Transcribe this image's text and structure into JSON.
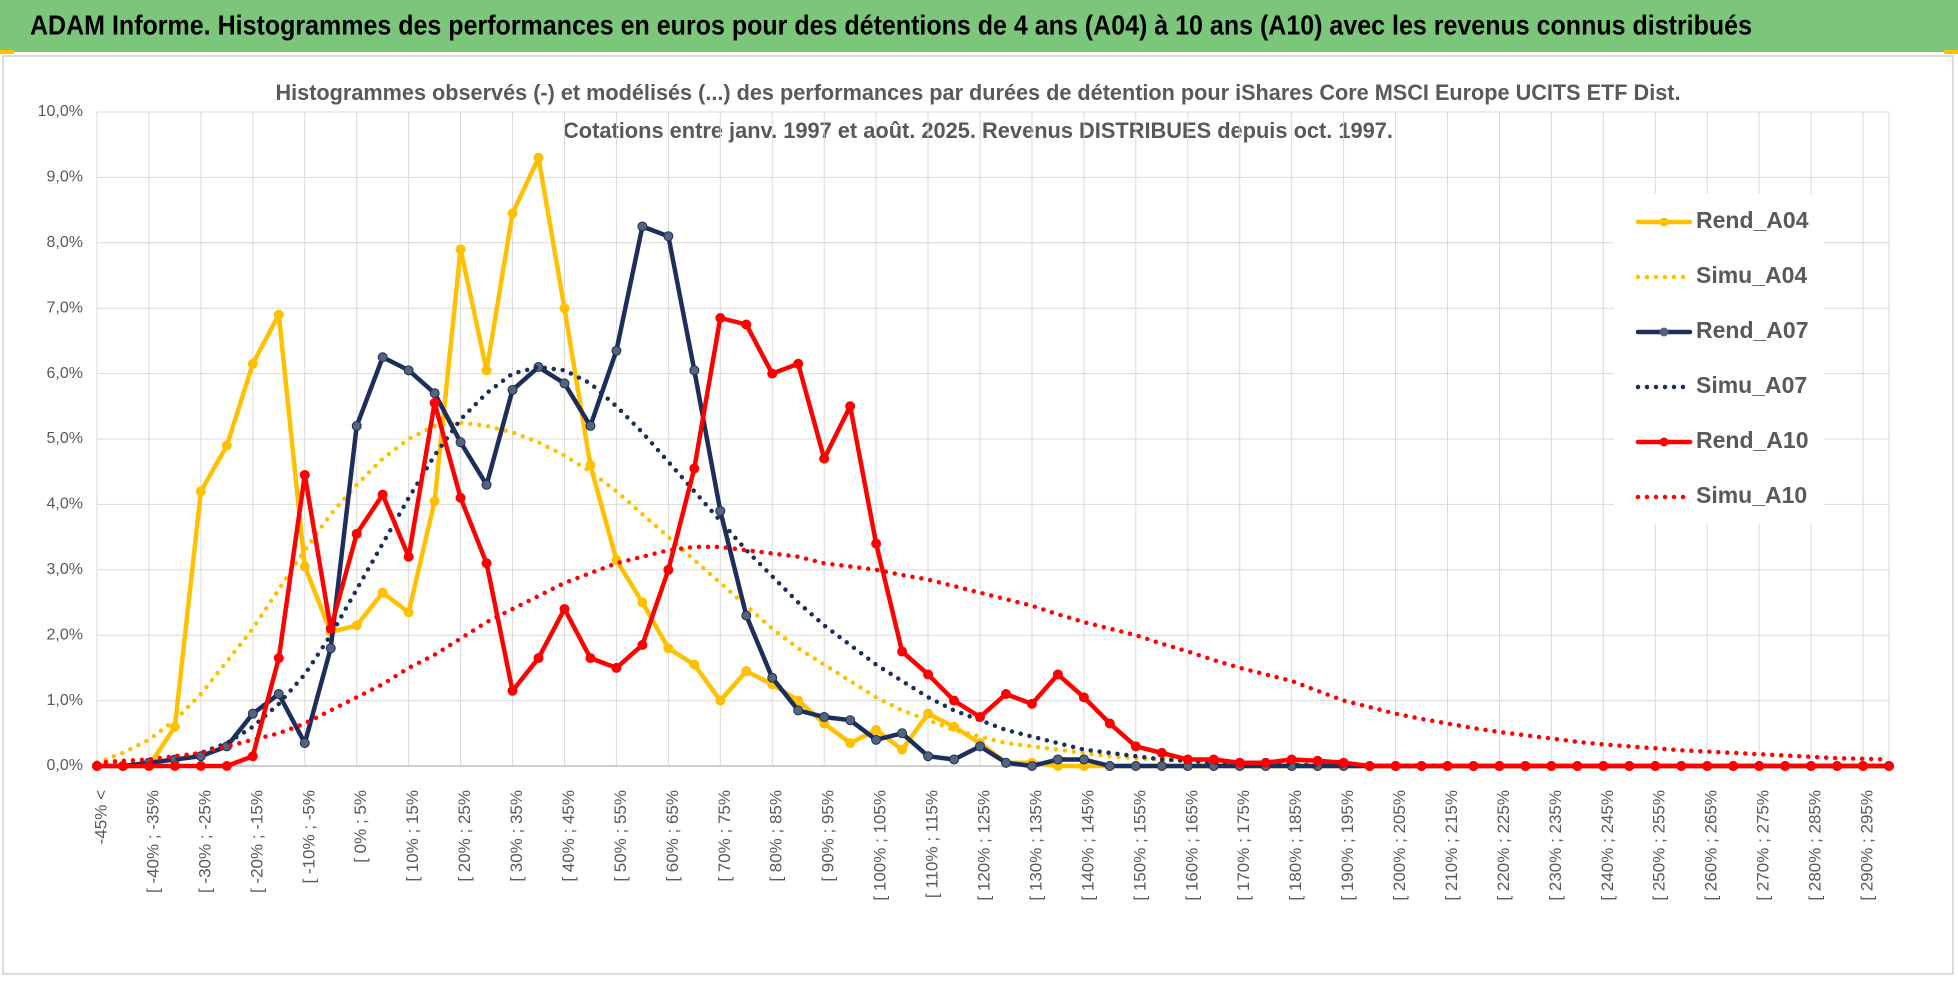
{
  "header": {
    "title": "ADAM Informe. Histogrammes des performances en euros pour des détentions de 4 ans (A04) à 10 ans (A10) avec les revenus connus distribués"
  },
  "chart_data": {
    "type": "line",
    "title": "Histogrammes observés (-) et modélisés (...) des performances par durées de détention pour iShares Core MSCI Europe UCITS ETF Dist.",
    "subtitle": "Cotations entre janv. 1997 et août. 2025. Revenus DISTRIBUES depuis oct. 1997.",
    "categories": [
      "-45% <",
      null,
      "[ -40% ; -35%",
      null,
      "[ -30% ; -25%",
      null,
      "[ -20% ; -15%",
      null,
      "[ -10% ; -5%",
      null,
      "[ 0% ; 5%",
      null,
      "[ 10% ; 15%",
      null,
      "[ 20% ; 25%",
      null,
      "[ 30% ; 35%",
      null,
      "[ 40% ; 45%",
      null,
      "[ 50% ; 55%",
      null,
      "[ 60% ; 65%",
      null,
      "[ 70% ; 75%",
      null,
      "[ 80% ; 85%",
      null,
      "[ 90% ; 95%",
      null,
      "[ 100% ; 105%",
      null,
      "[ 110% ; 115%",
      null,
      "[ 120% ; 125%",
      null,
      "[ 130% ; 135%",
      null,
      "[ 140% ; 145%",
      null,
      "[ 150% ; 155%",
      null,
      "[ 160% ; 165%",
      null,
      "[ 170% ; 175%",
      null,
      "[ 180% ; 185%",
      null,
      "[ 190% ; 195%",
      null,
      "[ 200% ; 205%",
      null,
      "[ 210% ; 215%",
      null,
      "[ 220% ; 225%",
      null,
      "[ 230% ; 235%",
      null,
      "[ 240% ; 245%",
      null,
      "[ 250% ; 255%",
      null,
      "[ 260% ; 265%",
      null,
      "[ 270% ; 275%",
      null,
      "[ 280% ; 285%",
      null,
      "[ 290% ; 295%",
      null
    ],
    "series": [
      {
        "name": "Rend_A04",
        "color": "#ffc000",
        "style": "solid",
        "markers": true,
        "values": [
          0,
          0,
          0,
          0.6,
          4.2,
          4.9,
          6.15,
          6.9,
          3.05,
          2.05,
          2.15,
          2.65,
          2.35,
          4.05,
          7.9,
          6.05,
          8.45,
          9.3,
          7.0,
          4.6,
          3.15,
          2.5,
          1.8,
          1.55,
          1.0,
          1.45,
          1.25,
          1.0,
          0.65,
          0.35,
          0.55,
          0.25,
          0.8,
          0.6,
          0.35,
          0.05,
          0.05,
          0,
          0,
          0,
          0,
          0,
          0,
          0,
          0,
          0,
          0,
          0,
          0,
          0,
          0,
          0,
          0,
          0,
          0,
          0,
          0,
          0,
          0,
          0,
          0,
          0,
          0,
          0,
          0,
          0,
          0,
          0,
          0,
          0
        ]
      },
      {
        "name": "Simu_A04",
        "color": "#ffc000",
        "style": "dotted",
        "markers": false,
        "values": [
          0.05,
          0.2,
          0.4,
          0.7,
          1.1,
          1.6,
          2.1,
          2.7,
          3.3,
          3.85,
          4.3,
          4.7,
          5.0,
          5.2,
          5.25,
          5.2,
          5.1,
          4.95,
          4.75,
          4.5,
          4.2,
          3.85,
          3.5,
          3.15,
          2.8,
          2.45,
          2.1,
          1.8,
          1.55,
          1.3,
          1.05,
          0.85,
          0.7,
          0.55,
          0.45,
          0.35,
          0.3,
          0.25,
          0.2,
          0.15,
          0.12,
          0.1,
          0.08,
          0.06,
          0.05,
          0.04,
          0.03,
          0.02,
          0.02,
          0.01,
          0.01,
          0.01,
          0.01,
          0,
          0,
          0,
          0,
          0,
          0,
          0,
          0,
          0,
          0,
          0,
          0,
          0,
          0,
          0,
          0,
          0
        ]
      },
      {
        "name": "Rend_A07",
        "color": "#1c2e5c",
        "style": "solid",
        "markers": true,
        "values": [
          0,
          0,
          0.05,
          0.1,
          0.15,
          0.3,
          0.8,
          1.1,
          0.35,
          1.8,
          5.2,
          6.25,
          6.05,
          5.7,
          4.95,
          4.3,
          5.75,
          6.1,
          5.85,
          5.2,
          6.35,
          8.25,
          8.1,
          6.05,
          3.9,
          2.3,
          1.35,
          0.85,
          0.75,
          0.7,
          0.4,
          0.5,
          0.15,
          0.1,
          0.3,
          0.05,
          0,
          0.1,
          0.1,
          0,
          0,
          0,
          0,
          0,
          0,
          0,
          0,
          0,
          0,
          0,
          0,
          0,
          0,
          0,
          0,
          0,
          0,
          0,
          0,
          0,
          0,
          0,
          0,
          0,
          0,
          0,
          0,
          0,
          0,
          0
        ]
      },
      {
        "name": "Simu_A07",
        "color": "#1c2e5c",
        "style": "dotted",
        "markers": false,
        "values": [
          0,
          0.02,
          0.05,
          0.1,
          0.2,
          0.35,
          0.6,
          0.95,
          1.4,
          2.0,
          2.7,
          3.4,
          4.1,
          4.75,
          5.3,
          5.7,
          6.0,
          6.1,
          6.05,
          5.85,
          5.5,
          5.1,
          4.65,
          4.2,
          3.75,
          3.3,
          2.9,
          2.5,
          2.15,
          1.85,
          1.55,
          1.3,
          1.05,
          0.85,
          0.7,
          0.55,
          0.45,
          0.35,
          0.25,
          0.2,
          0.15,
          0.1,
          0.08,
          0.05,
          0.04,
          0.03,
          0.02,
          0.01,
          0,
          0,
          0,
          0,
          0,
          0,
          0,
          0,
          0,
          0,
          0,
          0,
          0,
          0,
          0,
          0,
          0,
          0,
          0,
          0,
          0,
          0
        ]
      },
      {
        "name": "Rend_A10",
        "color": "#ff0000",
        "style": "solid",
        "markers": true,
        "values": [
          0,
          0,
          0,
          0,
          0,
          0,
          0.15,
          1.65,
          4.45,
          2.1,
          3.55,
          4.15,
          3.2,
          5.55,
          4.1,
          3.1,
          1.15,
          1.65,
          2.4,
          1.65,
          1.5,
          1.85,
          3.0,
          4.55,
          6.85,
          6.75,
          6.0,
          6.15,
          4.7,
          5.5,
          3.4,
          1.75,
          1.4,
          1.0,
          0.75,
          1.1,
          0.95,
          1.4,
          1.05,
          0.65,
          0.3,
          0.2,
          0.1,
          0.1,
          0.05,
          0.05,
          0.1,
          0.08,
          0.05,
          0,
          0,
          0,
          0,
          0,
          0,
          0,
          0,
          0,
          0,
          0,
          0,
          0,
          0,
          0,
          0,
          0,
          0,
          0,
          0,
          0
        ]
      },
      {
        "name": "Simu_A10",
        "color": "#ff0000",
        "style": "dotted",
        "markers": false,
        "values": [
          0.05,
          0.08,
          0.1,
          0.15,
          0.2,
          0.3,
          0.4,
          0.5,
          0.65,
          0.85,
          1.05,
          1.25,
          1.5,
          1.7,
          1.95,
          2.2,
          2.4,
          2.6,
          2.8,
          2.95,
          3.1,
          3.2,
          3.3,
          3.35,
          3.35,
          3.3,
          3.25,
          3.2,
          3.1,
          3.05,
          3.0,
          2.92,
          2.85,
          2.75,
          2.65,
          2.55,
          2.45,
          2.32,
          2.2,
          2.1,
          2.0,
          1.87,
          1.75,
          1.62,
          1.5,
          1.4,
          1.3,
          1.15,
          1.0,
          0.9,
          0.8,
          0.72,
          0.65,
          0.58,
          0.52,
          0.47,
          0.42,
          0.37,
          0.33,
          0.3,
          0.27,
          0.24,
          0.22,
          0.2,
          0.18,
          0.16,
          0.14,
          0.12,
          0.11,
          0.1
        ]
      }
    ],
    "ylim": [
      0,
      10
    ],
    "yticks": [
      {
        "value": 0,
        "label": "0,0%"
      },
      {
        "value": 1,
        "label": "1,0%"
      },
      {
        "value": 2,
        "label": "2,0%"
      },
      {
        "value": 3,
        "label": "3,0%"
      },
      {
        "value": 4,
        "label": "4,0%"
      },
      {
        "value": 5,
        "label": "5,0%"
      },
      {
        "value": 6,
        "label": "6,0%"
      },
      {
        "value": 7,
        "label": "7,0%"
      },
      {
        "value": 8,
        "label": "8,0%"
      },
      {
        "value": 9,
        "label": "9,0%"
      },
      {
        "value": 10,
        "label": "10,0%"
      }
    ],
    "grid": true,
    "legend": "right"
  }
}
